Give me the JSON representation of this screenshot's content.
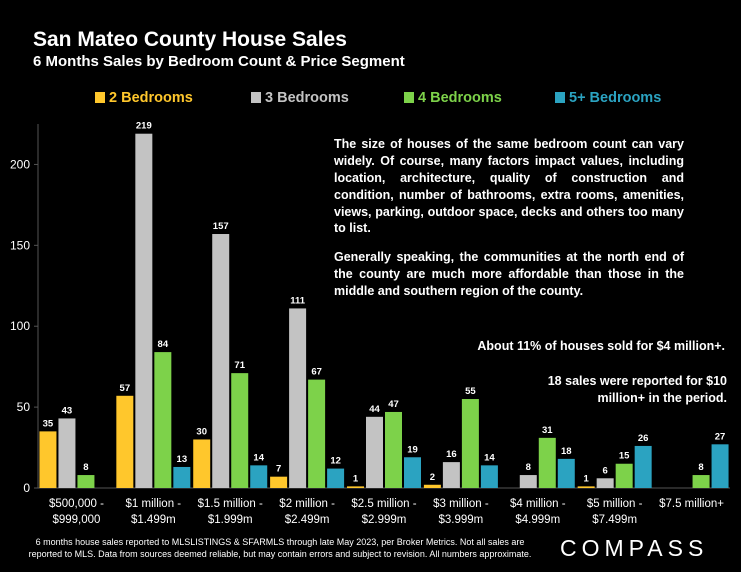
{
  "header": {
    "title": "San Mateo County House Sales",
    "subtitle": "6 Months Sales by Bedroom Count & Price Segment"
  },
  "notes": {
    "paragraph_1": "The size of houses of the same bedroom count can vary widely. Of course, many factors impact values, including location, architecture, quality of construction and condition, number of bathrooms, extra rooms, amenities, views, parking, outdoor space, decks and others too many to list.",
    "paragraph_2": "Generally speaking, the communities at the north end of the county are much more affordable than those in the middle and southern region of the county.",
    "pct_4m": "About 11% of houses sold for $4 million+.",
    "sales_10m": "18 sales were reported for $10 million+ in the period."
  },
  "footnote": {
    "line_1": "6 months house sales reported to MLSLISTINGS & SFARMLS through late May 2023, per Broker Metrics. Not all sales are",
    "line_2": "reported to MLS. Data from sources deemed reliable, but may contain errors and subject to revision. All numbers approximate."
  },
  "brand": {
    "logo_text": "COMPASS"
  },
  "colors": {
    "background": "#000000",
    "2_bedrooms": "#FFC72C",
    "3_bedrooms": "#C3C3C3",
    "4_bedrooms": "#7DD24A",
    "5_plus_bedrooms": "#2BA3C1",
    "axis": "#555555"
  },
  "chart_data": {
    "type": "bar",
    "categories": [
      [
        "$500,000 -",
        "$999,000"
      ],
      [
        "$1 million -",
        "$1.499m"
      ],
      [
        "$1.5 million -",
        "$1.999m"
      ],
      [
        "$2 million -",
        "$2.499m"
      ],
      [
        "$2.5 million -",
        "$2.999m"
      ],
      [
        "$3 million -",
        "$3.999m"
      ],
      [
        "$4 million -",
        "$4.999m"
      ],
      [
        "$5 million -",
        "$7.499m"
      ],
      [
        "$7.5 million+"
      ]
    ],
    "series": [
      {
        "name": "2 Bedrooms",
        "color": "#FFC72C",
        "values": [
          35,
          57,
          30,
          7,
          1,
          2,
          null,
          1,
          null
        ]
      },
      {
        "name": "3 Bedrooms",
        "color": "#C3C3C3",
        "values": [
          43,
          219,
          157,
          111,
          44,
          16,
          8,
          6,
          null
        ]
      },
      {
        "name": "4 Bedrooms",
        "color": "#7DD24A",
        "values": [
          8,
          84,
          71,
          67,
          47,
          55,
          31,
          15,
          8
        ]
      },
      {
        "name": "5+ Bedrooms",
        "color": "#2BA3C1",
        "values": [
          null,
          13,
          14,
          12,
          19,
          14,
          18,
          26,
          27
        ]
      }
    ],
    "ylim": [
      0,
      225
    ],
    "yticks": [
      0,
      50,
      100,
      150,
      200
    ],
    "legend": "top",
    "grid": false
  }
}
